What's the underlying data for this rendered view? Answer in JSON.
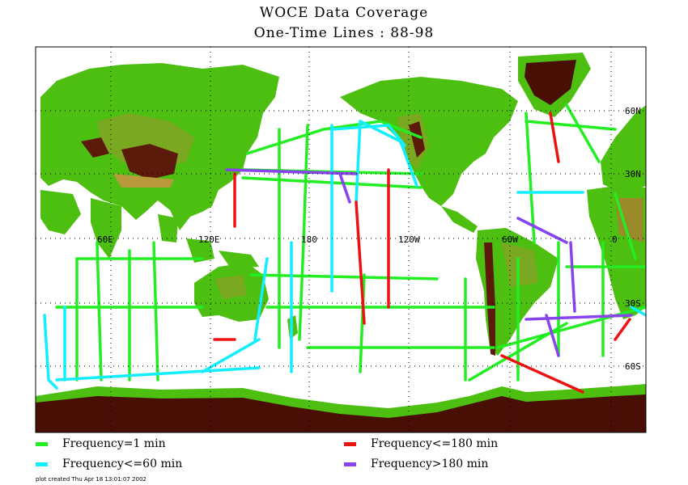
{
  "title": "WOCE Data Coverage",
  "subtitle": "One-Time Lines : 88-98",
  "map": {
    "lon_labels": [
      "60E",
      "120E",
      "180",
      "120W",
      "60W",
      "0"
    ],
    "lat_labels": [
      "60N",
      "30N",
      "30S",
      "60S"
    ],
    "colors": {
      "ocean": "#ffffff",
      "land_low": "#33cc00",
      "land_mid": "#6fa619",
      "land_high": "#b89a3c",
      "mountains": "#5c1a0a",
      "ice": "#4a0f04"
    }
  },
  "legend": [
    {
      "label": "Frequency=1 min",
      "color": "#22ee22"
    },
    {
      "label": "Frequency<=180 min",
      "color": "#ee1111"
    },
    {
      "label": "Frequency<=60 min",
      "color": "#11eeff"
    },
    {
      "label": "Frequency>180 min",
      "color": "#8844ee"
    }
  ],
  "footer": "plot created Thu Apr 18 13:01:07 2002"
}
